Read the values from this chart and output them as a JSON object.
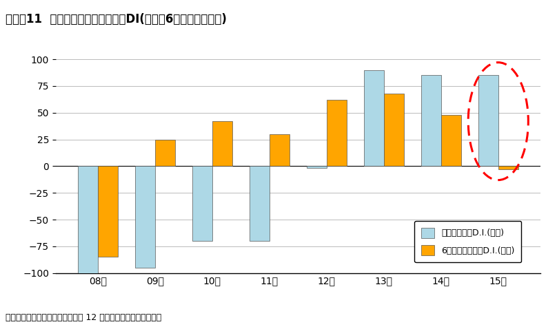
{
  "title": "図表－11  不動産投資市場の景況感DI(現況、6ヵ月後の見通し)",
  "categories": [
    "08年",
    "09年",
    "10年",
    "11年",
    "12年",
    "13年",
    "14年",
    "15年"
  ],
  "current_values": [
    -100,
    -95,
    -70,
    -70,
    -2,
    90,
    85,
    85
  ],
  "forecast_values": [
    -85,
    25,
    42,
    30,
    62,
    68,
    48,
    -3
  ],
  "current_color": "#ADD8E6",
  "forecast_color": "#FFA500",
  "ylim": [
    -100,
    100
  ],
  "yticks": [
    -100,
    -75,
    -50,
    -25,
    0,
    25,
    50,
    75,
    100
  ],
  "legend_current": "現在の景況感D.I.(左軸)",
  "legend_forecast": "6ケ月後の景況感D.I.(左軸)",
  "source_text": "（出所）ニッセイ基礎研究所「第 12 回不動産市況アンケート」",
  "bar_width": 0.35,
  "bg_color": "#FFFFFF",
  "grid_color": "#BBBBBB"
}
